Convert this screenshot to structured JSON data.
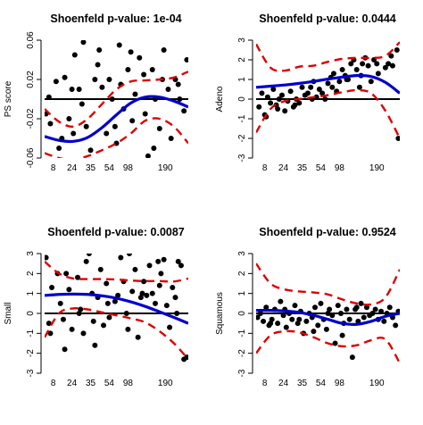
{
  "chart_data": [
    {
      "type": "scatter",
      "title": "Shoenfeld p-value: 1e-04",
      "ylabel": "PS score",
      "xlabel": "",
      "ylim": [
        -0.06,
        0.06
      ],
      "yticks": [
        -0.06,
        -0.02,
        0.02,
        0.06
      ],
      "yticklabels": [
        "-0.06",
        "-0.02",
        "0.02",
        "0.06"
      ],
      "xlim": [
        0,
        100
      ],
      "xticks": [
        {
          "x": 6,
          "label": "8"
        },
        {
          "x": 19,
          "label": "24"
        },
        {
          "x": 32,
          "label": "35"
        },
        {
          "x": 45,
          "label": "54"
        },
        {
          "x": 58,
          "label": "98"
        },
        {
          "x": 84,
          "label": "190"
        }
      ],
      "reference_line": 0,
      "series": [
        {
          "role": "points",
          "color": "#000000",
          "x": [
            1,
            4,
            8,
            12,
            14,
            17,
            19,
            21,
            24,
            27,
            29,
            32,
            35,
            38,
            40,
            43,
            45,
            47,
            50,
            53,
            55,
            58,
            61,
            63,
            66,
            69,
            72,
            75,
            77,
            80,
            83,
            86,
            88,
            91,
            94,
            97,
            99,
            3,
            10,
            26,
            37,
            49,
            60,
            70,
            82,
            93,
            20,
            52,
            76
          ],
          "y": [
            -0.015,
            -0.025,
            0.018,
            -0.04,
            0.022,
            -0.02,
            0.01,
            0.045,
            0.01,
            0.058,
            -0.028,
            -0.052,
            0.02,
            0.05,
            0.012,
            -0.035,
            0.02,
            0.0,
            -0.045,
            0.015,
            -0.01,
            0.03,
            -0.022,
            0.005,
            0.042,
            0.025,
            -0.058,
            0.03,
            0.0,
            -0.03,
            0.05,
            0.01,
            -0.04,
            0.02,
            0.0,
            -0.012,
            0.04,
            0.002,
            -0.05,
            -0.005,
            0.035,
            -0.028,
            0.048,
            -0.015,
            0.02,
            0.015,
            -0.035,
            0.055,
            -0.05
          ]
        },
        {
          "role": "fit",
          "color": "#0000cc",
          "x": [
            0,
            10,
            20,
            30,
            40,
            50,
            60,
            70,
            80,
            90,
            100
          ],
          "y": [
            -0.038,
            -0.042,
            -0.043,
            -0.039,
            -0.029,
            -0.016,
            -0.004,
            0.002,
            0.002,
            -0.002,
            -0.008
          ]
        },
        {
          "role": "upper",
          "color": "#dd0000",
          "x": [
            0,
            10,
            20,
            30,
            40,
            50,
            60,
            70,
            80,
            90,
            100
          ],
          "y": [
            -0.01,
            -0.023,
            -0.028,
            -0.02,
            -0.005,
            0.01,
            0.018,
            0.019,
            0.02,
            0.022,
            0.028
          ]
        },
        {
          "role": "lower",
          "color": "#dd0000",
          "x": [
            0,
            10,
            20,
            30,
            40,
            50,
            60,
            70,
            80,
            90,
            100
          ],
          "y": [
            -0.055,
            -0.06,
            -0.062,
            -0.058,
            -0.052,
            -0.045,
            -0.035,
            -0.022,
            -0.02,
            -0.028,
            -0.045
          ]
        }
      ]
    },
    {
      "type": "scatter",
      "title": "Shoenfeld p-value: 0.0444",
      "ylabel": "Adeno",
      "xlabel": "",
      "ylim": [
        -3,
        3
      ],
      "yticks": [
        -3,
        -2,
        -1,
        0,
        1,
        2,
        3
      ],
      "yticklabels": [
        "-3",
        "-2",
        "-1",
        "0",
        "1",
        "2",
        "3"
      ],
      "xlim": [
        0,
        100
      ],
      "xticks": [
        {
          "x": 6,
          "label": "8"
        },
        {
          "x": 19,
          "label": "24"
        },
        {
          "x": 32,
          "label": "35"
        },
        {
          "x": 45,
          "label": "54"
        },
        {
          "x": 58,
          "label": "98"
        },
        {
          "x": 84,
          "label": "190"
        }
      ],
      "reference_line": 0,
      "series": [
        {
          "role": "points",
          "color": "#000000",
          "x": [
            2,
            4,
            6,
            8,
            10,
            12,
            14,
            16,
            18,
            20,
            22,
            24,
            26,
            28,
            30,
            32,
            34,
            36,
            38,
            40,
            42,
            44,
            46,
            48,
            50,
            52,
            54,
            56,
            58,
            60,
            62,
            64,
            66,
            68,
            70,
            72,
            74,
            76,
            78,
            80,
            82,
            84,
            86,
            88,
            90,
            92,
            94,
            96,
            98,
            99,
            7,
            15,
            27,
            39,
            53,
            63,
            73,
            85,
            95
          ],
          "y": [
            -0.4,
            0.3,
            -0.8,
            0.1,
            -0.2,
            0.5,
            -0.3,
            0.0,
            0.2,
            -0.6,
            -0.1,
            0.4,
            -0.4,
            0.0,
            -0.2,
            0.6,
            0.2,
            0.3,
            0.6,
            0.9,
            0.1,
            0.5,
            0.3,
            0.0,
            0.8,
            1.1,
            1.3,
            0.4,
            0.9,
            1.5,
            1.2,
            1.0,
            1.8,
            2.0,
            1.5,
            0.6,
            1.8,
            2.1,
            1.7,
            0.9,
            2.0,
            1.8,
            -3.5,
            -3.3,
            1.6,
            1.8,
            2.2,
            3.5,
            2.5,
            -2.0,
            -0.9,
            -0.5,
            -0.3,
            0.0,
            0.6,
            1.0,
            1.2,
            1.3,
            1.7
          ]
        },
        {
          "role": "fit",
          "color": "#0000cc",
          "x": [
            0,
            10,
            20,
            30,
            40,
            50,
            60,
            70,
            80,
            90,
            100
          ],
          "y": [
            0.6,
            0.66,
            0.72,
            0.8,
            0.9,
            1.02,
            1.12,
            1.2,
            1.15,
            0.85,
            0.3
          ]
        },
        {
          "role": "upper",
          "color": "#dd0000",
          "x": [
            0,
            10,
            20,
            30,
            40,
            50,
            60,
            70,
            80,
            90,
            100
          ],
          "y": [
            2.8,
            1.6,
            1.45,
            1.65,
            1.7,
            1.9,
            2.05,
            2.1,
            2.1,
            2.2,
            2.9
          ]
        },
        {
          "role": "lower",
          "color": "#dd0000",
          "x": [
            0,
            10,
            20,
            30,
            40,
            50,
            60,
            70,
            80,
            90,
            100
          ],
          "y": [
            -1.7,
            -0.5,
            -0.1,
            0.0,
            0.1,
            0.2,
            0.35,
            0.45,
            0.3,
            -0.6,
            -2.0
          ]
        }
      ]
    },
    {
      "type": "scatter",
      "title": "Shoenfeld p-value: 0.0087",
      "ylabel": "Small",
      "xlabel": "",
      "ylim": [
        -3,
        3
      ],
      "yticks": [
        -3,
        -2,
        -1,
        0,
        1,
        2,
        3
      ],
      "yticklabels": [
        "-3",
        "-2",
        "-1",
        "0",
        "1",
        "2",
        "3"
      ],
      "xlim": [
        0,
        100
      ],
      "xticks": [
        {
          "x": 6,
          "label": "8"
        },
        {
          "x": 19,
          "label": "24"
        },
        {
          "x": 32,
          "label": "35"
        },
        {
          "x": 45,
          "label": "54"
        },
        {
          "x": 58,
          "label": "98"
        },
        {
          "x": 84,
          "label": "190"
        }
      ],
      "reference_line": 0,
      "series": [
        {
          "role": "points",
          "color": "#000000",
          "x": [
            1,
            3,
            5,
            7,
            9,
            11,
            13,
            15,
            17,
            19,
            21,
            23,
            25,
            27,
            29,
            31,
            33,
            35,
            37,
            39,
            41,
            43,
            45,
            47,
            49,
            51,
            53,
            55,
            57,
            59,
            61,
            63,
            65,
            67,
            69,
            71,
            73,
            75,
            77,
            79,
            81,
            83,
            85,
            87,
            89,
            91,
            93,
            95,
            97,
            99,
            4,
            14,
            24,
            34,
            44,
            58,
            68,
            80,
            92
          ],
          "y": [
            2.8,
            -0.5,
            1.3,
            3.2,
            2.0,
            0.5,
            -0.3,
            2.0,
            1.2,
            -0.8,
            3.2,
            1.8,
            0.2,
            -1.0,
            2.6,
            3.0,
            1.0,
            -1.6,
            0.8,
            2.2,
            -0.6,
            1.5,
            -0.2,
            3.4,
            0.6,
            0.9,
            2.8,
            1.6,
            0.0,
            3.0,
            1.1,
            2.2,
            -1.2,
            0.8,
            1.6,
            0.9,
            2.4,
            1.0,
            0.5,
            2.6,
            2.0,
            2.7,
            0.4,
            -0.7,
            1.3,
            0.8,
            2.6,
            2.4,
            -2.3,
            -2.2,
            -1.0,
            -1.8,
            0.0,
            -0.4,
            0.5,
            -0.8,
            1.0,
            1.4,
            0.0
          ]
        },
        {
          "role": "fit",
          "color": "#0000cc",
          "x": [
            0,
            10,
            20,
            30,
            40,
            50,
            60,
            70,
            80,
            90,
            100
          ],
          "y": [
            0.9,
            0.95,
            0.97,
            0.95,
            0.88,
            0.76,
            0.58,
            0.35,
            0.08,
            -0.2,
            -0.5
          ]
        },
        {
          "role": "upper",
          "color": "#dd0000",
          "x": [
            0,
            10,
            20,
            30,
            40,
            50,
            60,
            70,
            80,
            90,
            100
          ],
          "y": [
            2.6,
            2.0,
            1.75,
            1.72,
            1.72,
            1.7,
            1.65,
            1.62,
            1.62,
            1.6,
            1.75
          ]
        },
        {
          "role": "lower",
          "color": "#dd0000",
          "x": [
            0,
            10,
            20,
            30,
            40,
            50,
            60,
            70,
            80,
            90,
            100
          ],
          "y": [
            -1.2,
            0.0,
            0.25,
            0.2,
            0.05,
            -0.1,
            -0.25,
            -0.45,
            -0.9,
            -1.5,
            -2.3
          ]
        }
      ]
    },
    {
      "type": "scatter",
      "title": "Shoenfeld p-value: 0.9524",
      "ylabel": "Squamous",
      "xlabel": "",
      "ylim": [
        -3,
        3
      ],
      "yticks": [
        -3,
        -2,
        -1,
        0,
        1,
        2,
        3
      ],
      "yticklabels": [
        "-3",
        "-2",
        "-1",
        "0",
        "1",
        "2",
        "3"
      ],
      "xlim": [
        0,
        100
      ],
      "xticks": [
        {
          "x": 6,
          "label": "8"
        },
        {
          "x": 19,
          "label": "24"
        },
        {
          "x": 32,
          "label": "35"
        },
        {
          "x": 45,
          "label": "54"
        },
        {
          "x": 58,
          "label": "98"
        },
        {
          "x": 84,
          "label": "190"
        }
      ],
      "reference_line": 0,
      "series": [
        {
          "role": "points",
          "color": "#000000",
          "x": [
            1,
            3,
            5,
            7,
            9,
            11,
            13,
            15,
            17,
            19,
            21,
            23,
            25,
            27,
            29,
            31,
            33,
            35,
            37,
            39,
            41,
            43,
            45,
            47,
            49,
            51,
            53,
            55,
            57,
            59,
            61,
            63,
            65,
            67,
            69,
            71,
            73,
            75,
            77,
            79,
            81,
            83,
            85,
            87,
            89,
            91,
            93,
            95,
            97,
            99,
            10,
            20,
            30,
            40,
            50,
            60,
            70
          ],
          "y": [
            -0.2,
            0.0,
            -0.4,
            0.3,
            -0.6,
            -0.3,
            0.2,
            -0.5,
            0.6,
            -0.1,
            -0.7,
            0.0,
            -0.3,
            0.4,
            -0.5,
            0.1,
            -1.0,
            -0.4,
            0.0,
            -0.2,
            0.3,
            -0.6,
            0.5,
            -0.3,
            -0.8,
            0.2,
            -0.1,
            -1.5,
            0.4,
            0.0,
            -0.5,
            0.2,
            -0.3,
            -2.2,
            0.2,
            -0.4,
            0.5,
            -0.2,
            0.3,
            -0.1,
            0.0,
            0.2,
            -0.3,
            0.1,
            -0.4,
            0.0,
            0.3,
            -0.2,
            -0.6,
            0.1,
            -0.5,
            0.2,
            -0.3,
            -0.9,
            0.0,
            -1.1,
            0.3
          ]
        },
        {
          "role": "fit",
          "color": "#0000cc",
          "x": [
            0,
            10,
            20,
            30,
            40,
            50,
            60,
            70,
            80,
            90,
            100
          ],
          "y": [
            0.15,
            0.15,
            0.12,
            0.05,
            -0.1,
            -0.3,
            -0.5,
            -0.55,
            -0.4,
            -0.15,
            0.0
          ]
        },
        {
          "role": "upper",
          "color": "#dd0000",
          "x": [
            0,
            10,
            20,
            30,
            40,
            50,
            60,
            70,
            80,
            90,
            100
          ],
          "y": [
            2.5,
            1.5,
            1.2,
            1.1,
            1.05,
            0.95,
            0.7,
            0.5,
            0.45,
            0.8,
            2.2
          ]
        },
        {
          "role": "lower",
          "color": "#dd0000",
          "x": [
            0,
            10,
            20,
            30,
            40,
            50,
            60,
            70,
            80,
            90,
            100
          ],
          "y": [
            -2.0,
            -1.1,
            -0.9,
            -0.95,
            -1.2,
            -1.5,
            -1.65,
            -1.6,
            -1.35,
            -1.3,
            -2.5
          ]
        }
      ]
    }
  ]
}
